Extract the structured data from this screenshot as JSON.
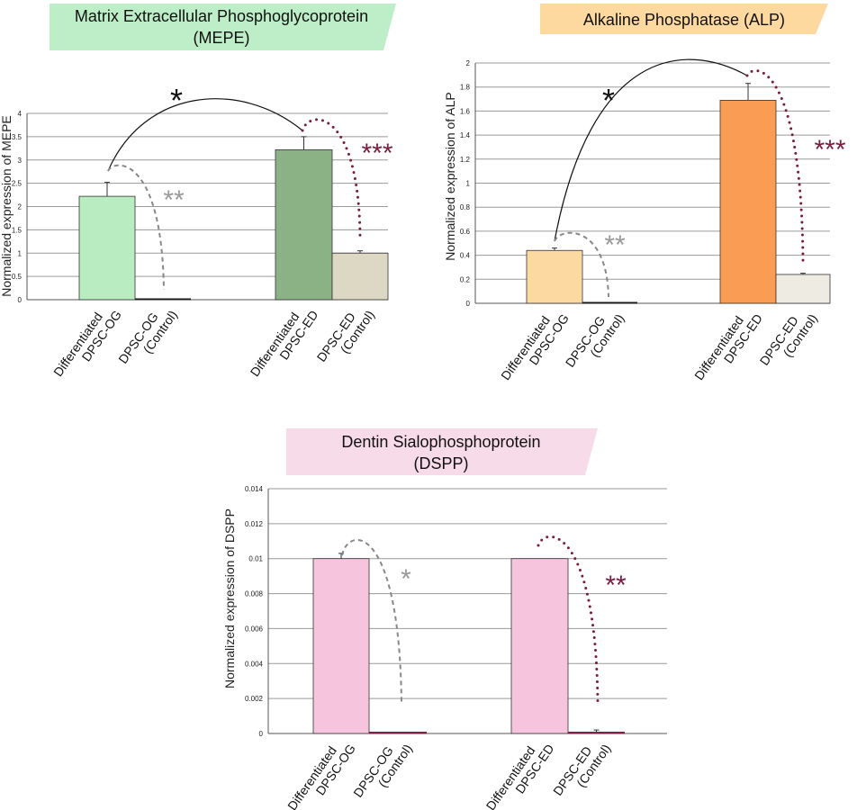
{
  "colors": {
    "axis": "#555555",
    "grid": "#9a9a9a",
    "bar_stroke": "#333333",
    "maroon": "#7a1c40",
    "gray_sig": "#999999",
    "black": "#111111"
  },
  "chart_data": [
    {
      "id": "mepe",
      "type": "bar",
      "title_lines": [
        "Matrix Extracellular Phosphoglycoprotein",
        "(MEPE)"
      ],
      "title_color": "#bdeec8",
      "ylabel": "Normalized expression of MEPE",
      "ylim": [
        0,
        4
      ],
      "yticks": [
        0,
        0.5,
        1,
        1.5,
        2,
        2.5,
        3,
        3.5,
        4
      ],
      "ytick_labels": [
        "0",
        "0.5",
        "1",
        "1.5",
        "2",
        "2.5",
        "3",
        "3.5",
        "4"
      ],
      "categories": [
        [
          "Differentiated",
          "DPSC-OG"
        ],
        [
          "DPSC-OG",
          "(Control)"
        ],
        [
          "Differentiated",
          "DPSC-ED"
        ],
        [
          "DPSC-ED",
          "(Control)"
        ]
      ],
      "values": [
        2.22,
        0.02,
        3.22,
        1.0
      ],
      "errors": [
        0.3,
        0.0,
        0.28,
        0.05
      ],
      "bar_colors": [
        "#b9ecc0",
        "#1a1a1a",
        "#8ab285",
        "#ddd8c3"
      ],
      "annotations": [
        {
          "text": "*",
          "color": "#111111",
          "between": [
            0,
            2
          ]
        },
        {
          "text": "**",
          "color": "#999999",
          "between": [
            0,
            1
          ]
        },
        {
          "text": "***",
          "color": "#7a1c40",
          "between": [
            2,
            3
          ]
        }
      ]
    },
    {
      "id": "alp",
      "type": "bar",
      "title_lines": [
        "Alkaline Phosphatase (ALP)"
      ],
      "title_color": "#fdd9a0",
      "ylabel": "Normalized expression of ALP",
      "ylim": [
        0,
        2
      ],
      "yticks": [
        0,
        0.2,
        0.4,
        0.6,
        0.8,
        1,
        1.2,
        1.4,
        1.6,
        1.8,
        2
      ],
      "ytick_labels": [
        "0",
        "0.2",
        "0.4",
        "0.6",
        "0.8",
        "1",
        "1.2",
        "1.4",
        "1.6",
        "1.8",
        "2"
      ],
      "categories": [
        [
          "Differentiated",
          "DPSC-OG"
        ],
        [
          "DPSC-OG",
          "(Control)"
        ],
        [
          "Differentiated",
          "DPSC-ED"
        ],
        [
          "DPSC-ED",
          "(Control)"
        ]
      ],
      "values": [
        0.44,
        0.005,
        1.69,
        0.24
      ],
      "errors": [
        0.02,
        0.0,
        0.14,
        0.01
      ],
      "bar_colors": [
        "#fdd9a2",
        "#1a1a1a",
        "#fb9c55",
        "#eeebe2"
      ],
      "annotations": [
        {
          "text": "*",
          "color": "#111111",
          "between": [
            0,
            2
          ]
        },
        {
          "text": "**",
          "color": "#999999",
          "between": [
            0,
            1
          ]
        },
        {
          "text": "***",
          "color": "#7a1c40",
          "between": [
            2,
            3
          ]
        }
      ]
    },
    {
      "id": "dspp",
      "type": "bar",
      "title_lines": [
        "Dentin Sialophosphoprotein",
        "(DSPP)"
      ],
      "title_color": "#f7dbe8",
      "ylabel": "Normalized expression of DSPP",
      "ylim": [
        0,
        0.014
      ],
      "yticks": [
        0,
        0.002,
        0.004,
        0.006,
        0.008,
        0.01,
        0.012,
        0.014
      ],
      "ytick_labels": [
        "0",
        "0.002",
        "0.004",
        "0.006",
        "0.008",
        "0.01",
        "0.012",
        "0.014"
      ],
      "categories": [
        [
          "Differentiated",
          "DPSC-OG"
        ],
        [
          "DPSC-OG",
          "(Control)"
        ],
        [
          "Differentiated",
          "DPSC-ED"
        ],
        [
          "DPSC-ED",
          "(Control)"
        ]
      ],
      "values": [
        0.01,
        0.0001,
        0.01,
        0.0001
      ],
      "errors": [
        0.0003,
        0.0,
        0.0,
        0.0001
      ],
      "bar_colors": [
        "#f7c4de",
        "#7a1c40",
        "#f7c4de",
        "#7a1c40"
      ],
      "annotations": [
        {
          "text": "*",
          "color": "#999999",
          "between": [
            0,
            1
          ]
        },
        {
          "text": "**",
          "color": "#7a1c40",
          "between": [
            2,
            3
          ]
        }
      ]
    }
  ]
}
